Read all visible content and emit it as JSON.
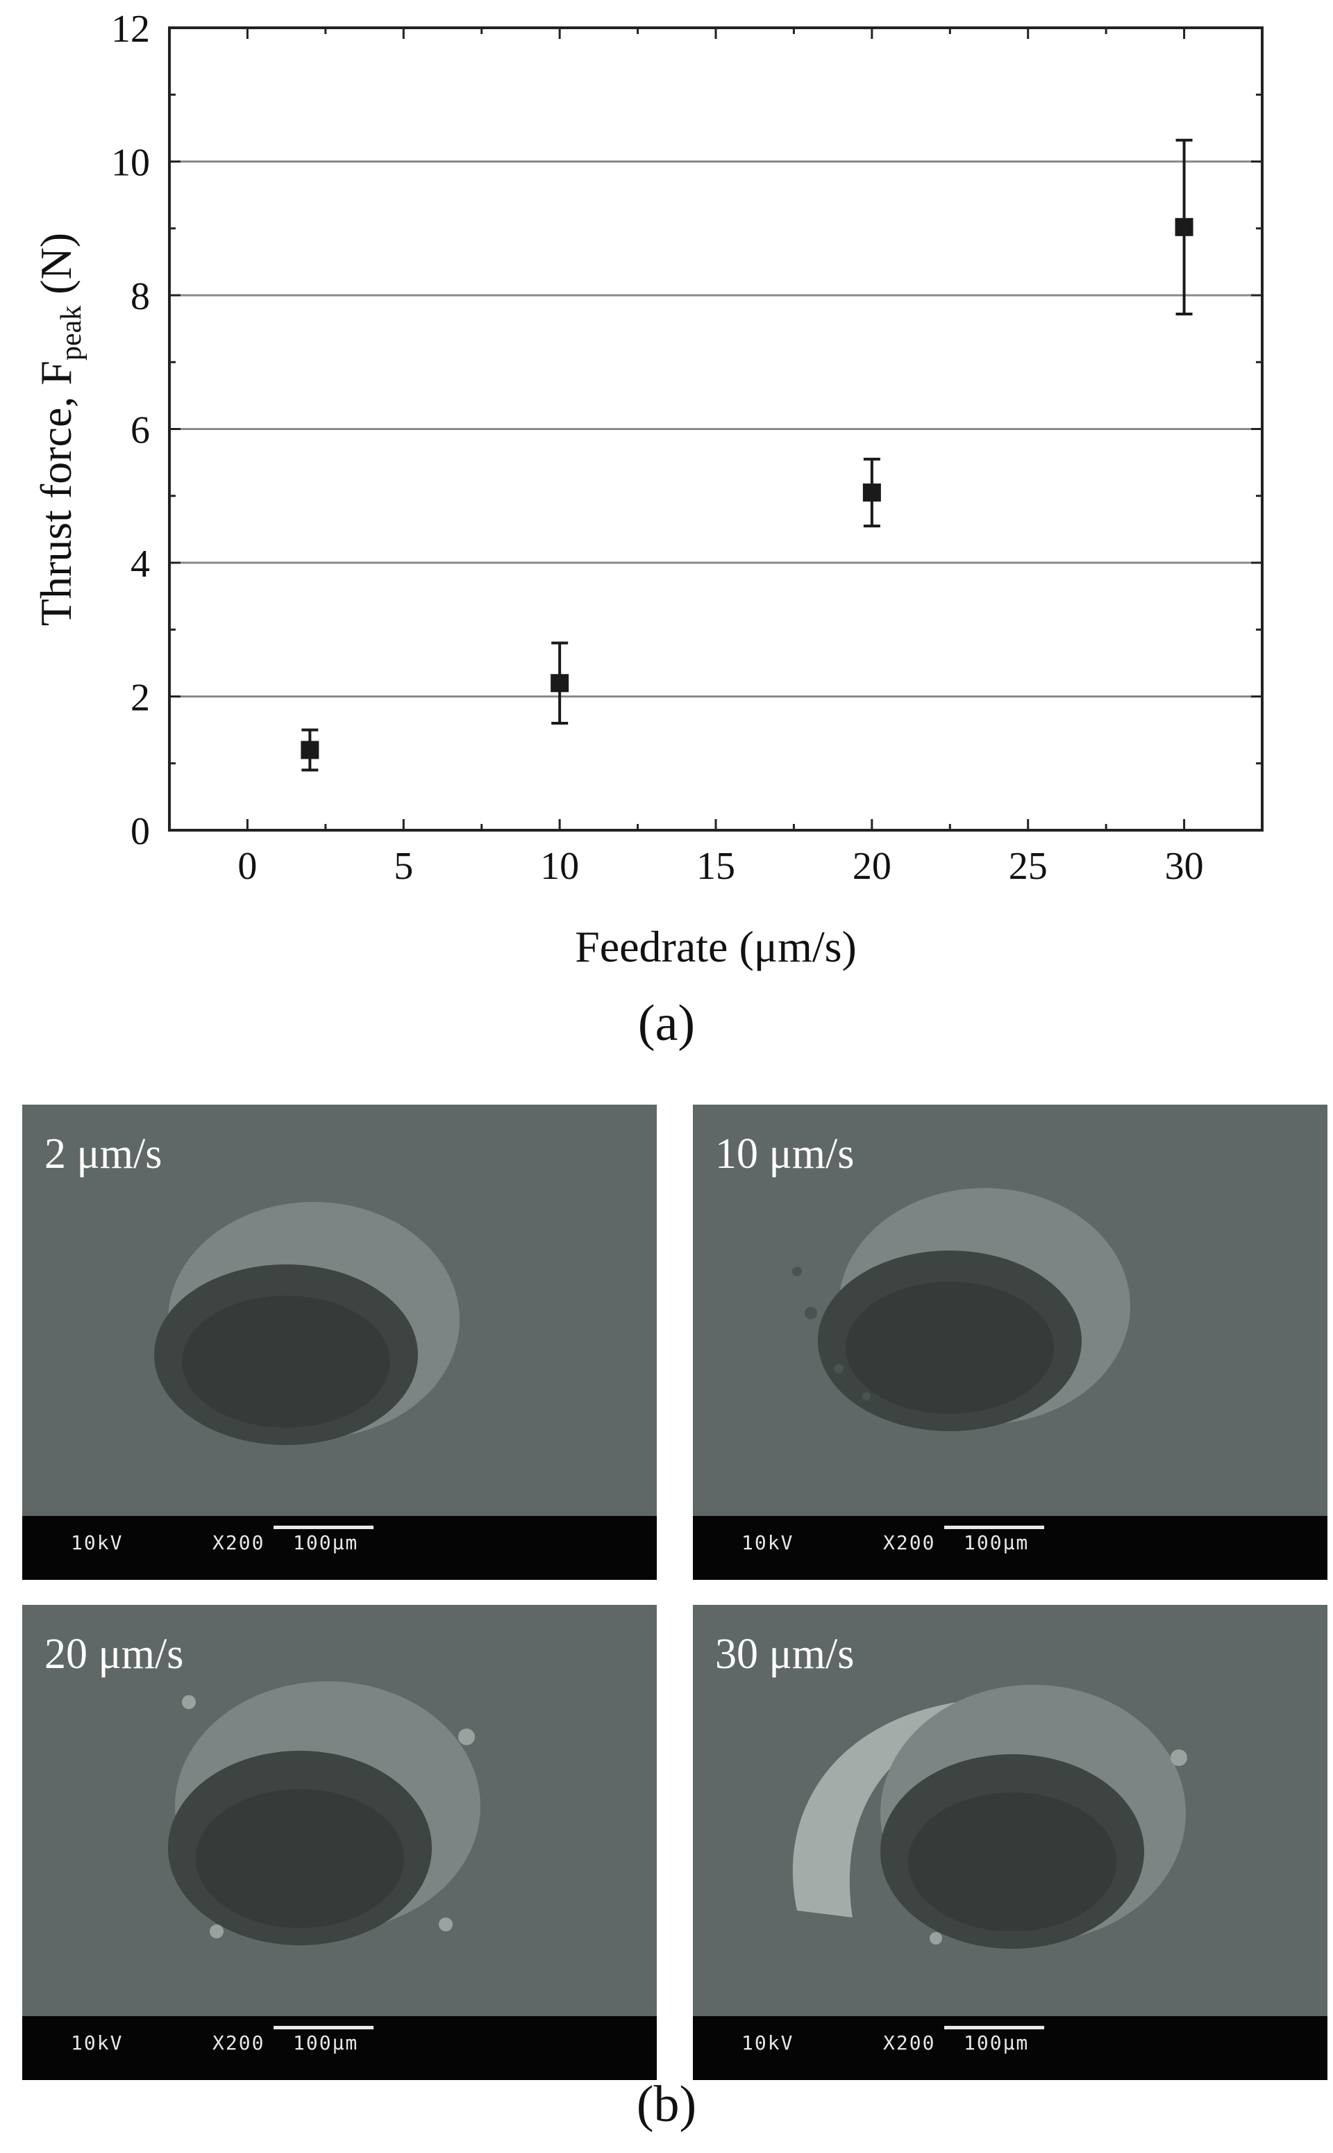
{
  "chart_data": {
    "type": "scatter",
    "series": [
      {
        "x": [
          2,
          10,
          20,
          30
        ],
        "y": [
          1.2,
          2.2,
          5.05,
          9.02
        ],
        "y_err": [
          0.3,
          0.6,
          0.5,
          1.3
        ]
      }
    ],
    "xlabel": "Feedrate (μm/s)",
    "ylabel_main": "Thrust force, F",
    "ylabel_sub": "peak",
    "ylabel_unit": " (N)",
    "xlim": [
      -2.5,
      32.5
    ],
    "ylim": [
      0,
      12
    ],
    "xticks": [
      0,
      5,
      10,
      15,
      20,
      25,
      30
    ],
    "yticks": [
      0,
      2,
      4,
      6,
      8,
      10,
      12
    ],
    "grid": "horizontal",
    "marker": "square",
    "color": "#1a1a1a"
  },
  "captions": {
    "a": "(a)",
    "b": "(b)"
  },
  "sem_panels": [
    {
      "label": "2 μm/s",
      "kv": "10kV",
      "mag": "X200",
      "scale": "100μm"
    },
    {
      "label": "10 μm/s",
      "kv": "10kV",
      "mag": "X200",
      "scale": "100μm"
    },
    {
      "label": "20 μm/s",
      "kv": "10kV",
      "mag": "X200",
      "scale": "100μm"
    },
    {
      "label": "30 μm/s",
      "kv": "10kV",
      "mag": "X200",
      "scale": "100μm"
    }
  ]
}
